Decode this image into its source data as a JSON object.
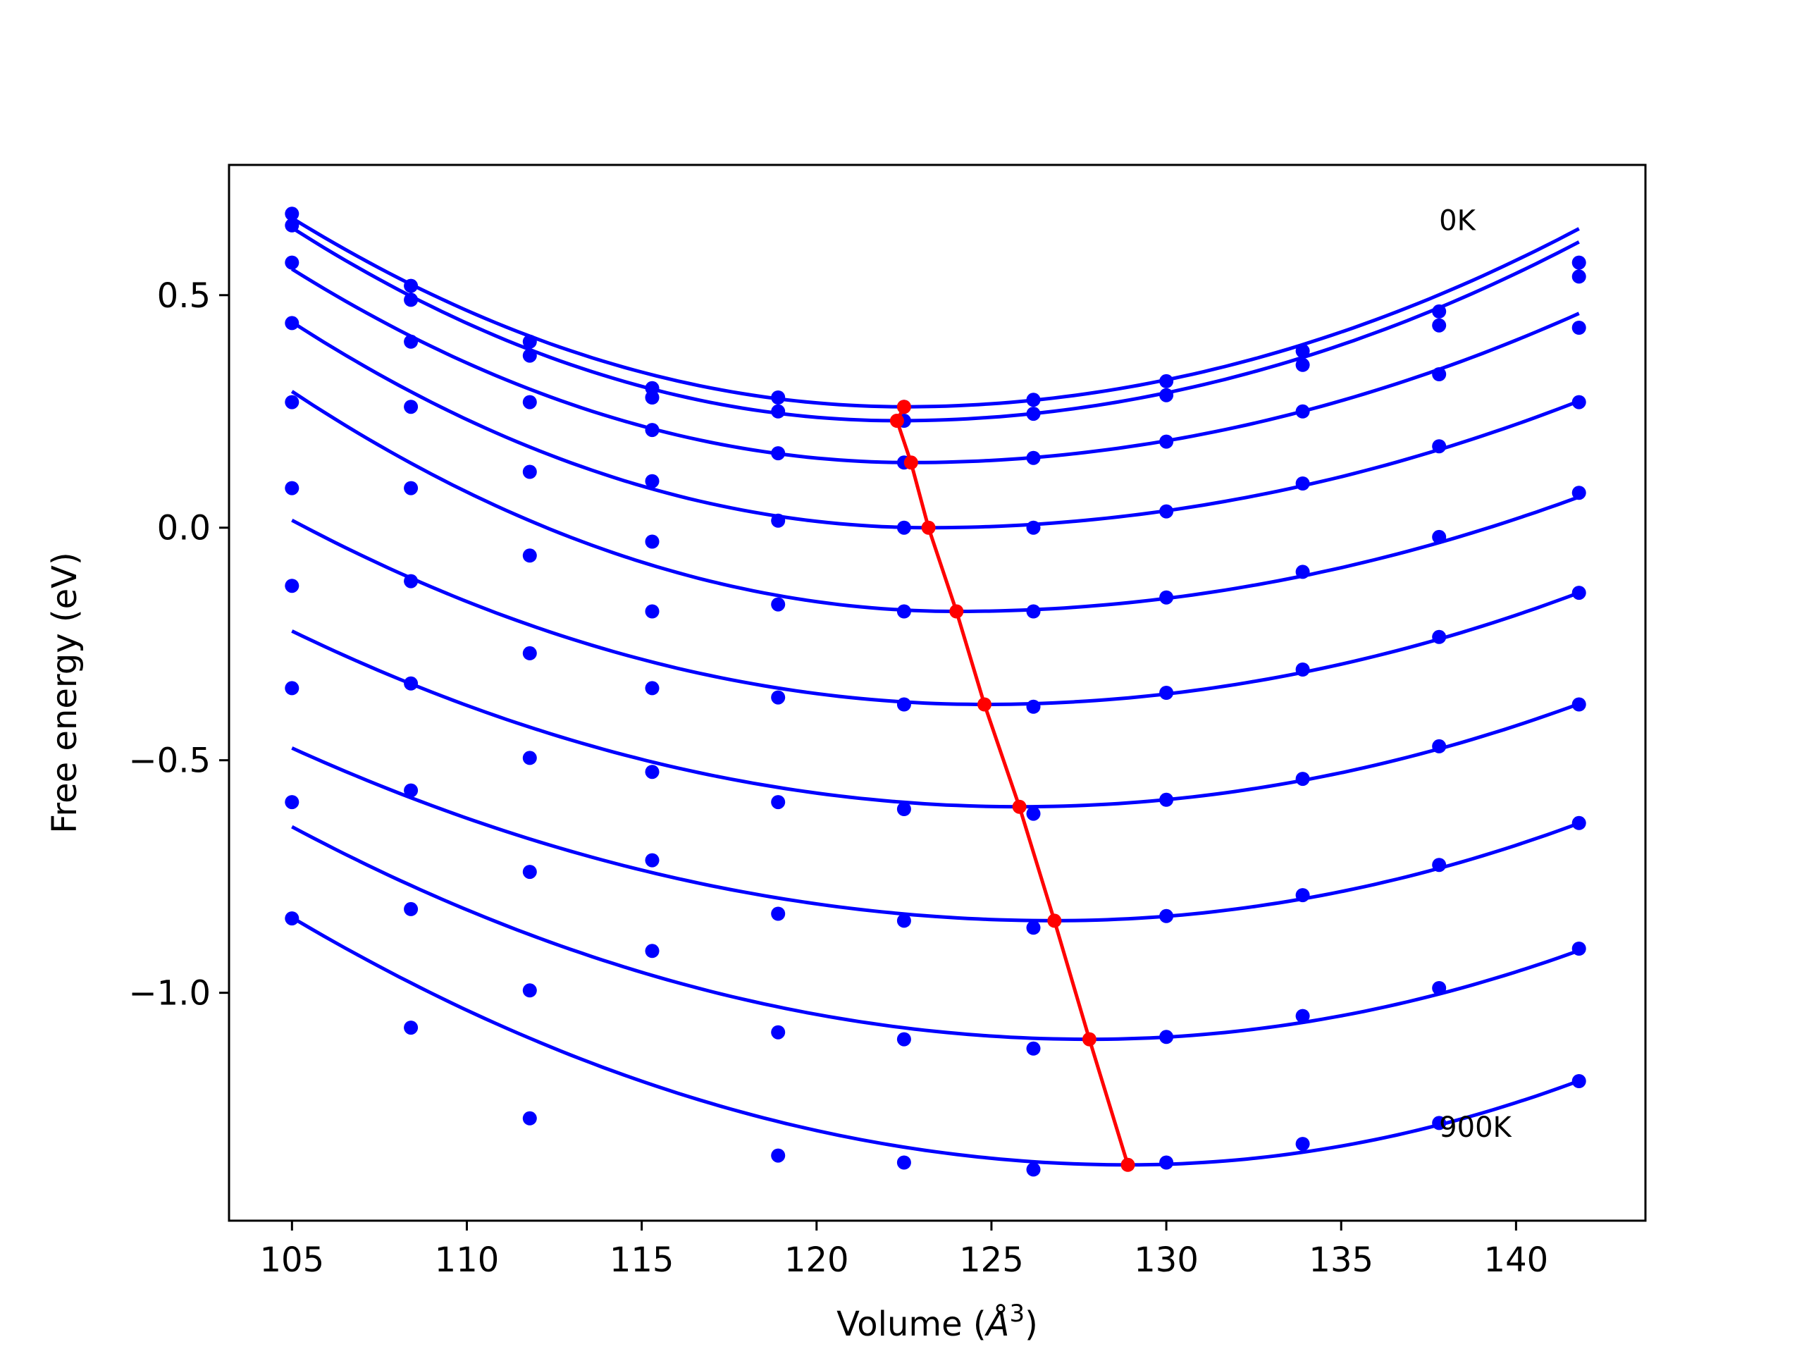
{
  "chart_data": {
    "type": "scatter",
    "title": "",
    "xlabel": "Volume",
    "xlabel_unit_base": "Å",
    "xlabel_unit_exp": "3",
    "ylabel": "Free energy (eV)",
    "xlim": [
      103.2,
      143.7
    ],
    "ylim": [
      -1.49,
      0.78
    ],
    "x_ticks": [
      105,
      110,
      115,
      120,
      125,
      130,
      135,
      140
    ],
    "x_tick_labels": [
      "105",
      "110",
      "115",
      "120",
      "125",
      "130",
      "135",
      "140"
    ],
    "y_ticks": [
      0.5,
      0.0,
      -0.5,
      -1.0
    ],
    "y_tick_labels": [
      "0.5",
      "0.0",
      "−0.5",
      "−1.0"
    ],
    "grid": false,
    "colors": {
      "curves": "#0000ff",
      "minimum_line": "#ff0000"
    },
    "annotations": [
      {
        "text": "0K",
        "x": 137.8,
        "y": 0.64
      },
      {
        "text": "900K",
        "x": 137.8,
        "y": -1.31
      }
    ],
    "volumes": [
      105.0,
      108.4,
      111.8,
      115.3,
      118.9,
      122.5,
      126.2,
      130.0,
      133.9,
      137.8,
      141.8
    ],
    "series": [
      {
        "points": [
          0.675,
          0.52,
          0.4,
          0.3,
          0.28,
          0.26,
          0.275,
          0.315,
          0.38,
          0.465,
          0.57
        ],
        "fit": {
          "v0": 122.5,
          "f0": 0.26,
          "a_left": 0.001325,
          "a_right": 0.001028
        }
      },
      {
        "points": [
          0.65,
          0.49,
          0.37,
          0.28,
          0.25,
          0.23,
          0.245,
          0.285,
          0.35,
          0.435,
          0.54
        ],
        "fit": {
          "v0": 122.3,
          "f0": 0.23,
          "a_left": 0.001386,
          "a_right": 0.001011
        }
      },
      {
        "points": [
          0.57,
          0.4,
          0.27,
          0.21,
          0.16,
          0.14,
          0.15,
          0.185,
          0.25,
          0.33,
          0.43
        ],
        "fit": {
          "v0": 122.7,
          "f0": 0.14,
          "a_left": 0.001328,
          "a_right": 0.000879
        }
      },
      {
        "points": [
          0.44,
          0.26,
          0.12,
          0.1,
          0.015,
          0.0,
          0.0,
          0.035,
          0.095,
          0.175,
          0.27
        ],
        "fit": {
          "v0": 123.2,
          "f0": 0.0,
          "a_left": 0.001335,
          "a_right": 0.000787
        }
      },
      {
        "points": [
          0.27,
          0.085,
          -0.06,
          -0.03,
          -0.165,
          -0.18,
          -0.18,
          -0.15,
          -0.095,
          -0.02,
          0.075
        ],
        "fit": {
          "v0": 124.0,
          "f0": -0.18,
          "a_left": 0.00131,
          "a_right": 0.000777
        }
      },
      {
        "points": [
          0.085,
          -0.115,
          -0.27,
          -0.18,
          -0.365,
          -0.38,
          -0.385,
          -0.355,
          -0.305,
          -0.235,
          -0.14
        ],
        "fit": {
          "v0": 124.8,
          "f0": -0.38,
          "a_left": 0.00101,
          "a_right": 0.000831
        }
      },
      {
        "points": [
          -0.125,
          -0.335,
          -0.495,
          -0.345,
          -0.59,
          -0.605,
          -0.615,
          -0.585,
          -0.54,
          -0.47,
          -0.38
        ],
        "fit": {
          "v0": 125.8,
          "f0": -0.6,
          "a_left": 0.000873,
          "a_right": 0.000864
        }
      },
      {
        "points": [
          -0.345,
          -0.565,
          -0.74,
          -0.525,
          -0.83,
          -0.845,
          -0.86,
          -0.835,
          -0.79,
          -0.725,
          -0.635
        ],
        "fit": {
          "v0": 126.8,
          "f0": -0.845,
          "a_left": 0.000781,
          "a_right": 0.000931
        }
      },
      {
        "points": [
          -0.59,
          -0.82,
          -0.995,
          -0.715,
          -1.085,
          -1.1,
          -1.12,
          -1.095,
          -1.05,
          -0.99,
          -0.905
        ],
        "fit": {
          "v0": 127.8,
          "f0": -1.1,
          "a_left": 0.000879,
          "a_right": 0.000974
        }
      },
      {
        "points": [
          -0.84,
          -1.075,
          -1.27,
          -0.91,
          -1.35,
          -1.365,
          -1.38,
          -1.365,
          -1.325,
          -1.28,
          -1.19
        ],
        "fit": {
          "v0": 128.9,
          "f0": -1.37,
          "a_left": 0.000931,
          "a_right": 0.001086
        }
      }
    ],
    "minimum_line": {
      "x": [
        122.5,
        122.3,
        122.7,
        123.2,
        124.0,
        124.8,
        125.8,
        126.8,
        127.8,
        128.9
      ],
      "y": [
        0.26,
        0.23,
        0.14,
        0.0,
        -0.18,
        -0.38,
        -0.6,
        -0.845,
        -1.1,
        -1.37
      ]
    }
  }
}
